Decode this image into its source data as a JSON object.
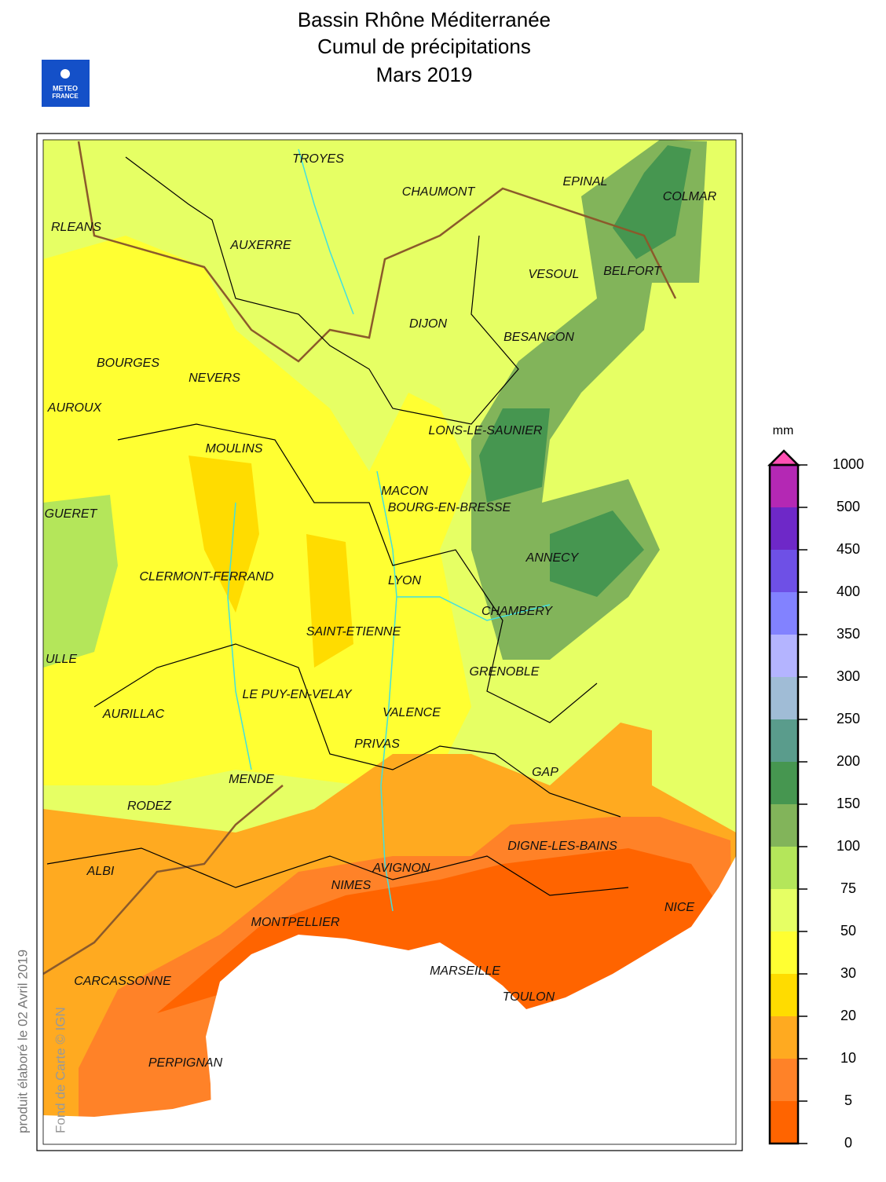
{
  "title": [
    "Bassin Rhône Méditerranée",
    "Cumul de précipitations",
    "Mars 2019"
  ],
  "logo": [
    "METEO",
    "FRANCE"
  ],
  "cities": [
    "TROYES",
    "CHAUMONT",
    "EPINAL",
    "COLMAR",
    "RLEANS",
    "AUXERRE",
    "VESOUL",
    "BELFORT",
    "DIJON",
    "BESANCON",
    "BOURGES",
    "NEVERS",
    "AUROUX",
    "LONS-LE-SAUNIER",
    "MOULINS",
    "MACON",
    "BOURG-EN-BRESSE",
    "GUERET",
    "ANNECY",
    "CLERMONT-FERRAND",
    "LYON",
    "CHAMBERY",
    "SAINT-ETIENNE",
    "ULLE",
    "GRENOBLE",
    "LE PUY-EN-VELAY",
    "AURILLAC",
    "VALENCE",
    "PRIVAS",
    "GAP",
    "MENDE",
    "RODEZ",
    "DIGNE-LES-BAINS",
    "ALBI",
    "AVIGNON",
    "NIMES",
    "NICE",
    "MONTPELLIER",
    "CARCASSONNE",
    "MARSEILLE",
    "TOULON",
    "PERPIGNAN"
  ],
  "legend": {
    "unit": "mm",
    "ticks": [
      0,
      5,
      10,
      20,
      30,
      50,
      75,
      100,
      150,
      200,
      250,
      300,
      350,
      400,
      450,
      500,
      1000
    ],
    "colors": [
      "#ff6400",
      "#ff8228",
      "#ffaa20",
      "#ffdc00",
      "#ffff32",
      "#e6ff64",
      "#b4e65a",
      "#82b45a",
      "#469650",
      "#5a9c8c",
      "#a0bcd6",
      "#b4b4ff",
      "#8282ff",
      "#6e50e6",
      "#6e28c8",
      "#b428b4"
    ],
    "over_color": "#ff50b4"
  },
  "credits": [
    "produit élaboré le 02 Avril 2019",
    "Fond de Carte © IGN"
  ]
}
